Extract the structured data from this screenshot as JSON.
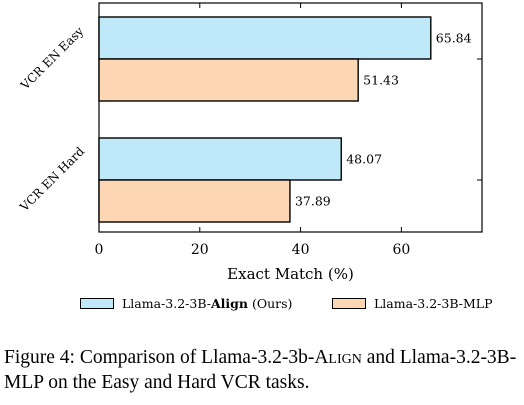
{
  "chart_data": {
    "type": "bar",
    "orientation": "horizontal",
    "categories": [
      "VCR EN Easy",
      "VCR EN Hard"
    ],
    "series": [
      {
        "name_prefix": "Llama-3.2-3B-",
        "name_bold": "Align",
        "name_suffix": " (Ours)",
        "values": [
          65.84,
          48.07
        ],
        "color": "#bfe8f9"
      },
      {
        "name": "Llama-3.2-3B-MLP",
        "values": [
          51.43,
          37.89
        ],
        "color": "#fdd7b4"
      }
    ],
    "data_labels": [
      [
        "65.84",
        "48.07"
      ],
      [
        "51.43",
        "37.89"
      ]
    ],
    "xlabel": "Exact Match (%)",
    "xlim": [
      0,
      76
    ],
    "xticks": [
      0,
      20,
      40,
      60
    ],
    "legend_position": "bottom"
  },
  "caption": {
    "prefix": "Figure 4: Comparison of Llama-3.2-3b-",
    "smallcaps": "Align",
    "suffix": " and Llama-3.2-3B-MLP on the Easy and Hard VCR tasks."
  }
}
